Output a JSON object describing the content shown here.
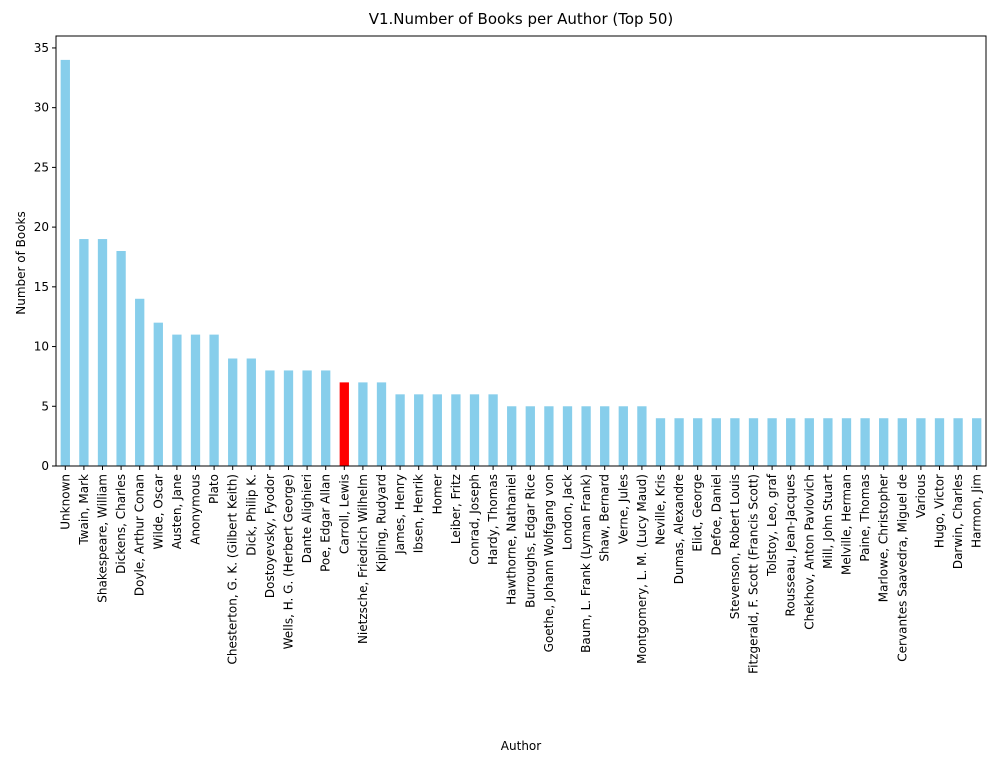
{
  "chart_data": {
    "type": "bar",
    "title": "V1.Number of Books per Author (Top 50)",
    "xlabel": "Author",
    "ylabel": "Number of Books",
    "ylim": [
      0,
      36
    ],
    "yticks": [
      0,
      5,
      10,
      15,
      20,
      25,
      30,
      35
    ],
    "grid": false,
    "legend": "none",
    "bar_color": "#87CEEB",
    "highlight_color": "#FF0000",
    "highlight_category": "Carroll, Lewis",
    "categories": [
      "Unknown",
      "Twain, Mark",
      "Shakespeare, William",
      "Dickens, Charles",
      "Doyle, Arthur Conan",
      "Wilde, Oscar",
      "Austen, Jane",
      "Anonymous",
      "Plato",
      "Chesterton, G. K. (Gilbert Keith)",
      "Dick, Philip K.",
      "Dostoyevsky, Fyodor",
      "Wells, H. G. (Herbert George)",
      "Dante Alighieri",
      "Poe, Edgar Allan",
      "Carroll, Lewis",
      "Nietzsche, Friedrich Wilhelm",
      "Kipling, Rudyard",
      "James, Henry",
      "Ibsen, Henrik",
      "Homer",
      "Leiber, Fritz",
      "Conrad, Joseph",
      "Hardy, Thomas",
      "Hawthorne, Nathaniel",
      "Burroughs, Edgar Rice",
      "Goethe, Johann Wolfgang von",
      "London, Jack",
      "Baum, L. Frank (Lyman Frank)",
      "Shaw, Bernard",
      "Verne, Jules",
      "Montgomery, L. M. (Lucy Maud)",
      "Neville, Kris",
      "Dumas, Alexandre",
      "Eliot, George",
      "Defoe, Daniel",
      "Stevenson, Robert Louis",
      "Fitzgerald, F. Scott (Francis Scott)",
      "Tolstoy, Leo, graf",
      "Rousseau, Jean-Jacques",
      "Chekhov, Anton Pavlovich",
      "Mill, John Stuart",
      "Melville, Herman",
      "Paine, Thomas",
      "Marlowe, Christopher",
      "Cervantes Saavedra, Miguel de",
      "Various",
      "Hugo, Victor",
      "Darwin, Charles",
      "Harmon, Jim"
    ],
    "values": [
      34,
      19,
      19,
      18,
      14,
      12,
      11,
      11,
      11,
      9,
      9,
      8,
      8,
      8,
      8,
      7,
      7,
      7,
      6,
      6,
      6,
      6,
      6,
      6,
      5,
      5,
      5,
      5,
      5,
      5,
      5,
      5,
      4,
      4,
      4,
      4,
      4,
      4,
      4,
      4,
      4,
      4,
      4,
      4,
      4,
      4,
      4,
      4,
      4,
      4
    ]
  }
}
